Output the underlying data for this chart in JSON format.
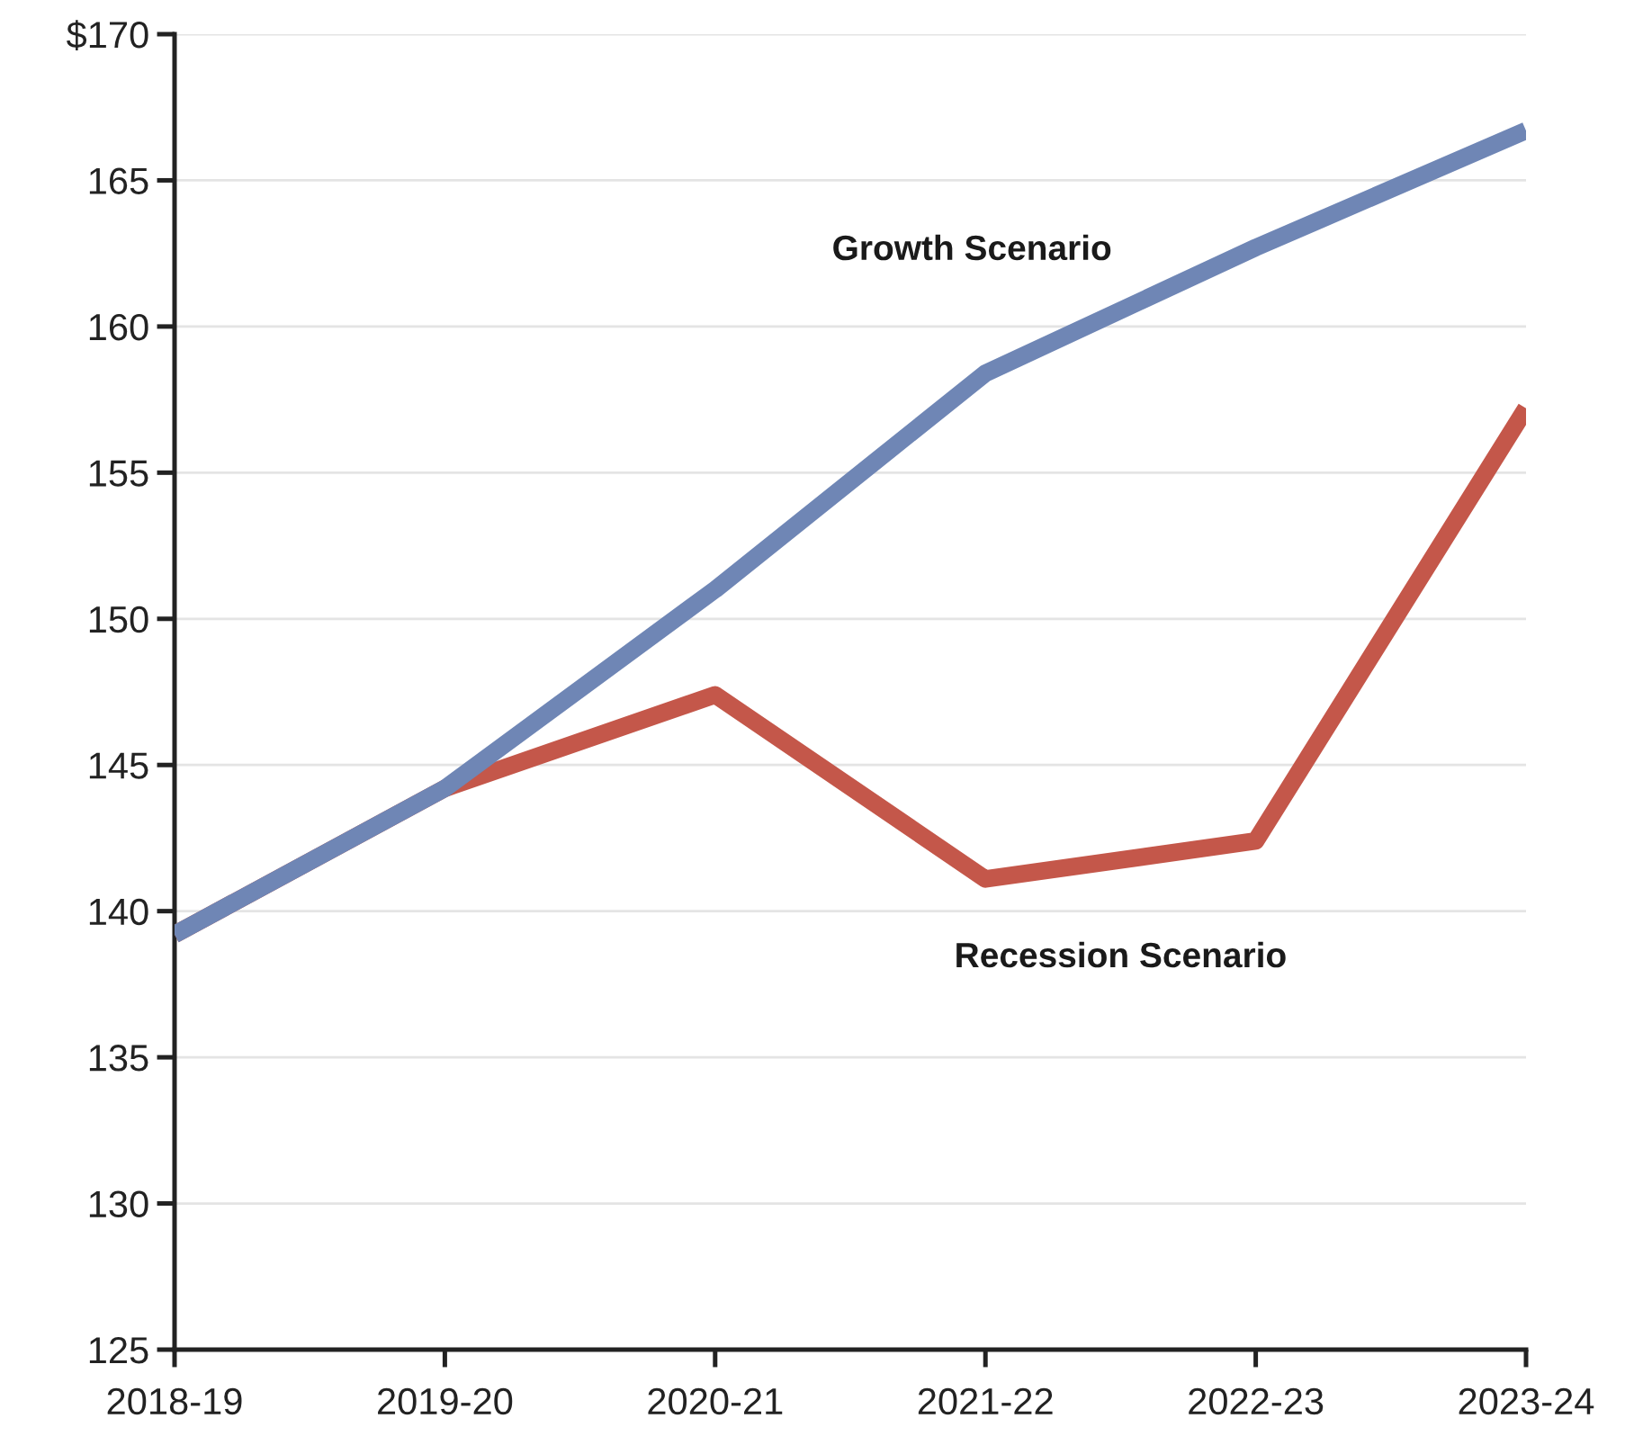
{
  "chart_data": {
    "type": "line",
    "categories": [
      "2018-19",
      "2019-20",
      "2020-21",
      "2021-22",
      "2022-23",
      "2023-24"
    ],
    "series": [
      {
        "name": "Growth Scenario",
        "color": "#6f86b5",
        "values": [
          139.2,
          144.2,
          151.0,
          158.4,
          162.7,
          166.7
        ]
      },
      {
        "name": "Recession Scenario",
        "color": "#c4574a",
        "values": [
          139.2,
          144.2,
          147.4,
          141.1,
          142.4,
          157.2
        ]
      }
    ],
    "ylim": [
      125,
      170
    ],
    "yticks": [
      125,
      130,
      135,
      140,
      145,
      150,
      155,
      160,
      165,
      {
        "value": 170,
        "label": "$170"
      }
    ],
    "grid": "y",
    "legend": false,
    "marker": "none",
    "line_style": "solid"
  }
}
